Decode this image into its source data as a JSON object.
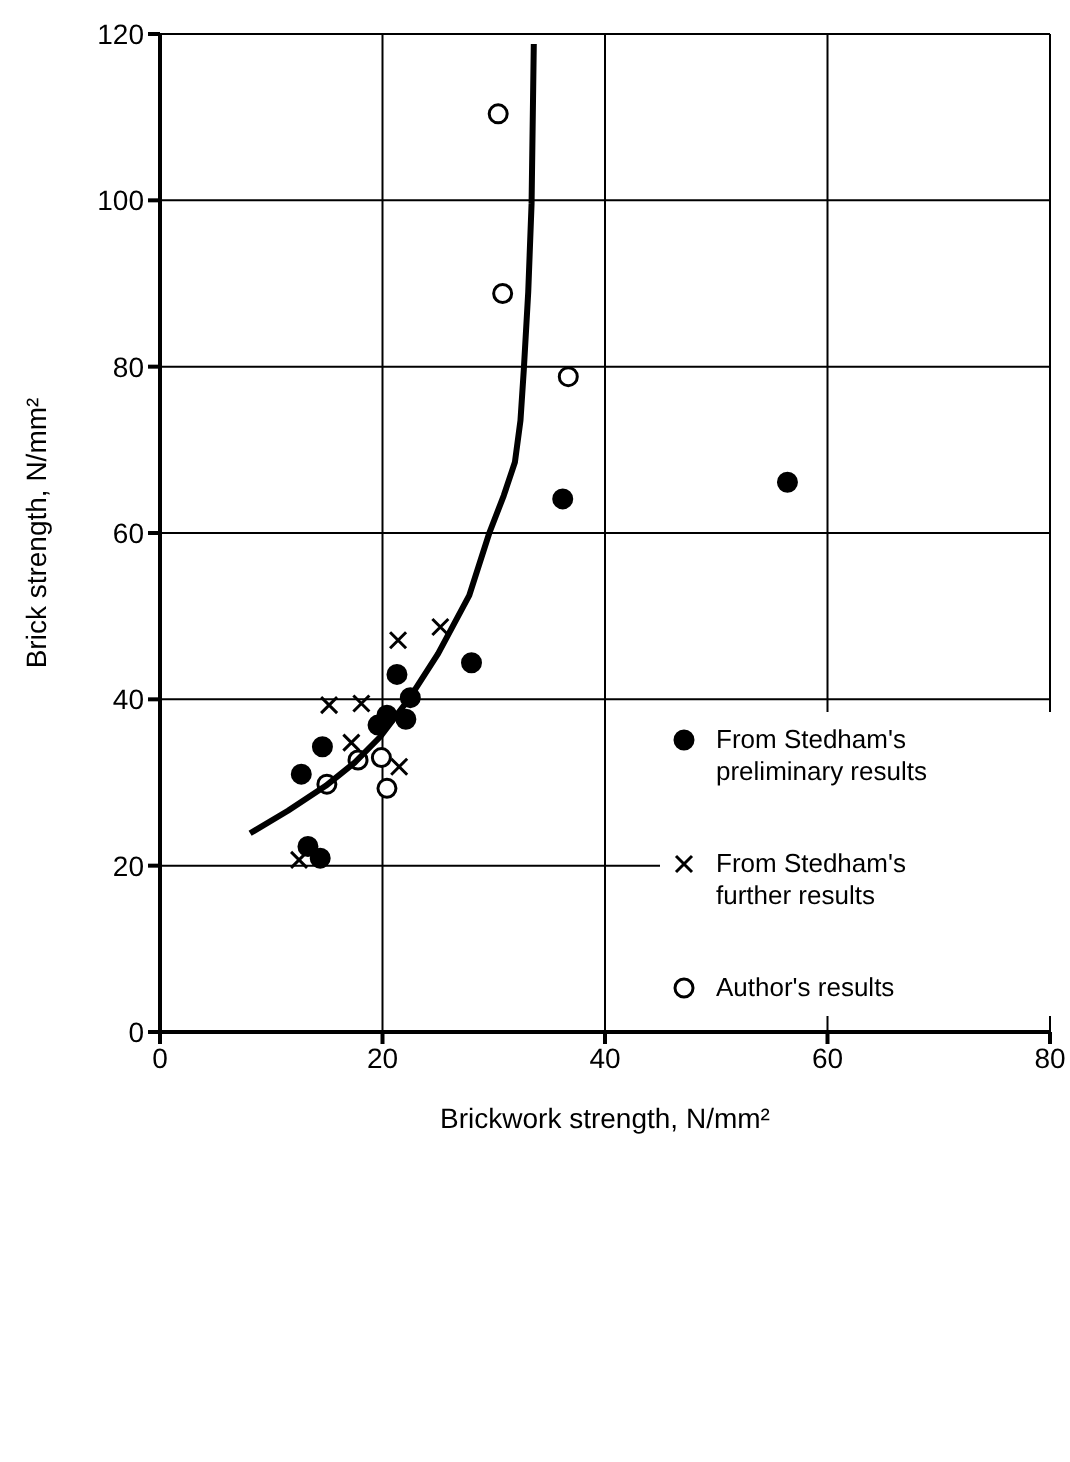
{
  "chart_data": {
    "type": "scatter",
    "xlabel": "Brickwork strength, N/mm²",
    "ylabel": "Brick strength, N/mm²",
    "xlim": [
      0,
      80
    ],
    "xticks": [
      0,
      20,
      40,
      60,
      80
    ],
    "ylim": [
      0,
      120
    ],
    "yticks": [
      0,
      20,
      40,
      60,
      80,
      100,
      120
    ],
    "grid": true,
    "legend": "right",
    "series": [
      {
        "name": "From Stedham's preliminary results",
        "color": "#000000",
        "marker": "circle",
        "x": [
          28.0,
          21.3,
          22.5,
          20.4,
          22.1,
          19.6,
          14.6,
          12.7,
          13.3,
          14.4,
          36.2,
          56.4
        ],
        "values": [
          44.4,
          43.0,
          40.2,
          38.1,
          37.6,
          36.9,
          34.3,
          31.0,
          22.3,
          20.9,
          64.1,
          66.1
        ]
      },
      {
        "name": "From Stedham's further results",
        "color": "#000000",
        "marker": "cross",
        "x": [
          25.2,
          21.4,
          15.2,
          18.1,
          17.2,
          21.5,
          12.5
        ],
        "values": [
          48.7,
          47.1,
          39.3,
          39.5,
          34.8,
          31.9,
          20.7
        ]
      },
      {
        "name": "Author's results",
        "color": "#ffffff",
        "marker": "circle",
        "x": [
          17.8,
          19.9,
          15.0,
          20.4,
          30.4,
          30.8,
          36.7
        ],
        "values": [
          32.7,
          33.0,
          29.8,
          29.3,
          110.4,
          88.8,
          78.8
        ]
      },
      {
        "type": "line",
        "color": "#000000",
        "marker": "none",
        "line_style": "solid",
        "x": [
          8.1,
          11.5,
          14.9,
          17.5,
          19.8,
          22.4,
          25.0,
          27.8,
          29.6,
          30.9,
          31.9,
          32.4,
          32.7,
          33.1,
          33.4,
          33.6
        ],
        "values": [
          23.9,
          26.6,
          29.6,
          32.4,
          35.5,
          40.1,
          45.5,
          52.5,
          60.0,
          64.5,
          68.5,
          73.5,
          79.6,
          89.0,
          99.6,
          118.8
        ]
      }
    ]
  }
}
